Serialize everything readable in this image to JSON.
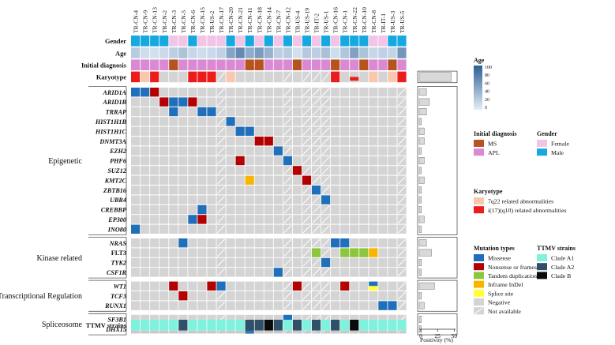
{
  "samples": [
    "TR-CN-4",
    "TR-CN-9",
    "TR-CN-13",
    "TR-CN-2",
    "TR-CN-3",
    "TR-CN-5",
    "TR-CN-6",
    "TR-CN-15",
    "TR-US-2",
    "TR-CN-17",
    "TR-CN-20",
    "TR-CN-21",
    "TR-CN-11",
    "TR-CN-18",
    "TR-CN-14",
    "TR-CN-7",
    "TR-CN-12",
    "TR-US-4",
    "TR-US-19",
    "TR-IT-2",
    "TR-US-1",
    "TR-CN-16",
    "TR-CN-1",
    "TR-CN-22",
    "TR-CN-10",
    "TR-CN-8",
    "TR-IT-1",
    "TR-US-3",
    "TR-US-5"
  ],
  "colors": {
    "missense": "#1f6fba",
    "nonsense": "#b30000",
    "tandem": "#8cc63f",
    "inframe": "#f7b500",
    "splice": "#ffff33",
    "negative": "#d4d4d4",
    "female": "#f2c4e6",
    "male": "#16a9e0",
    "ms": "#b5541f",
    "apl": "#d98ad3",
    "k7q22": "#f9c7ad",
    "ki17": "#ed1c1c",
    "cladeA1": "#7ff2de",
    "cladeA2": "#2e5068",
    "cladeB": "#0a0a0a",
    "bar": "#d9d9d9",
    "age_low": "#e4eef8",
    "age_high": "#2c5f94"
  },
  "annotation_labels": {
    "gender": "Gender",
    "age": "Age",
    "initial_diagnosis": "Initial diagnosis",
    "karyotype": "Karyotype",
    "ttmv": "TTMV strains"
  },
  "tracks": {
    "gender": [
      "M",
      "M",
      "M",
      "M",
      "F",
      "F",
      "M",
      "F",
      "F",
      "F",
      "M",
      "F",
      "M",
      "F",
      "M",
      "F",
      "M",
      "F",
      "M",
      "F",
      "M",
      "F",
      "M",
      "M",
      "M",
      "F",
      "F",
      "M",
      "M"
    ],
    "age": [
      24,
      12,
      10,
      14,
      22,
      30,
      16,
      12,
      14,
      20,
      52,
      70,
      46,
      58,
      42,
      22,
      24,
      10,
      26,
      22,
      32,
      12,
      28,
      54,
      30,
      16,
      20,
      18,
      62
    ],
    "diagnosis": [
      "APL",
      "APL",
      "APL",
      "APL",
      "MS",
      "APL",
      "APL",
      "APL",
      "APL",
      "APL",
      "APL",
      "APL",
      "MS",
      "MS",
      "APL",
      "APL",
      "APL",
      "MS",
      "APL",
      "APL",
      "APL",
      "MS",
      "APL",
      "APL",
      "MS",
      "APL",
      "APL",
      "MS",
      "APL"
    ],
    "karyotype": [
      "i17",
      "k7",
      "i17",
      "neg",
      "neg",
      "neg",
      "i17",
      "i17",
      "i17",
      "NA",
      "k7",
      "neg",
      "neg",
      "neg",
      "neg",
      "neg",
      "NA",
      "neg",
      "NA",
      "NA",
      "NA",
      "i17",
      "neg",
      "i17half",
      "neg",
      "k7",
      "neg",
      "k7",
      "i17"
    ],
    "ttmv": [
      "A1",
      "A1",
      "A1",
      "A1",
      "A1",
      "A2",
      "A1",
      "A1",
      "A1",
      "A1",
      "A1",
      "A1",
      "A2",
      "A2",
      "B",
      "A2",
      "A1",
      "A2",
      "A1",
      "A2",
      "A1",
      "A2",
      "A1",
      "B",
      "A1",
      "A1",
      "A1",
      "A1",
      "A1"
    ]
  },
  "na_columns": [
    9,
    16,
    18,
    19,
    20,
    28
  ],
  "groups": [
    {
      "name": "Epigenetic",
      "genes": [
        "ARID1A",
        "ARID1B",
        "TRRAP",
        "HIST1H1B",
        "HIST1H1C",
        "DNMT3A",
        "EZH2",
        "PHF6",
        "SUZ12",
        "KMT2C",
        "ZBTB16",
        "UBR4",
        "CREBBP",
        "EP300",
        "INO80"
      ]
    },
    {
      "name": "Kinase related",
      "genes": [
        "NRAS",
        "FLT3",
        "TYK2",
        "CSF1R"
      ]
    },
    {
      "name": "Transcriptional Regulation",
      "genes": [
        "WT1",
        "TCF3",
        "RUNX1"
      ]
    },
    {
      "name": "Spliceosome",
      "genes": [
        "SF3B1",
        "DHX15"
      ]
    }
  ],
  "italic_genes": [
    "ARID1A",
    "ARID1B",
    "TRRAP",
    "HIST1H1B",
    "HIST1H1C",
    "DNMT3A",
    "EZH2",
    "PHF6",
    "SUZ12",
    "KMT2C",
    "ZBTB16",
    "UBR4",
    "CREBBP",
    "EP300",
    "INO80",
    "NRAS",
    "TYK2",
    "CSF1R",
    "WT1",
    "TCF3",
    "RUNX1",
    "SF3B1",
    "DHX15"
  ],
  "mutations": [
    {
      "gene": "ARID1A",
      "col": 0,
      "type": "missense"
    },
    {
      "gene": "ARID1A",
      "col": 1,
      "type": "missense"
    },
    {
      "gene": "ARID1A",
      "col": 2,
      "type": "nonsense"
    },
    {
      "gene": "ARID1B",
      "col": 3,
      "type": "nonsense"
    },
    {
      "gene": "ARID1B",
      "col": 4,
      "type": "missense"
    },
    {
      "gene": "ARID1B",
      "col": 5,
      "type": "missense"
    },
    {
      "gene": "ARID1B",
      "col": 6,
      "type": "nonsense"
    },
    {
      "gene": "TRRAP",
      "col": 4,
      "type": "missense"
    },
    {
      "gene": "TRRAP",
      "col": 7,
      "type": "missense"
    },
    {
      "gene": "TRRAP",
      "col": 8,
      "type": "missense"
    },
    {
      "gene": "HIST1H1B",
      "col": 10,
      "type": "missense"
    },
    {
      "gene": "HIST1H1C",
      "col": 11,
      "type": "missense"
    },
    {
      "gene": "HIST1H1C",
      "col": 12,
      "type": "missense"
    },
    {
      "gene": "DNMT3A",
      "col": 13,
      "type": "nonsense"
    },
    {
      "gene": "DNMT3A",
      "col": 14,
      "type": "nonsense"
    },
    {
      "gene": "EZH2",
      "col": 15,
      "type": "missense"
    },
    {
      "gene": "PHF6",
      "col": 11,
      "type": "nonsense"
    },
    {
      "gene": "PHF6",
      "col": 16,
      "type": "missense"
    },
    {
      "gene": "SUZ12",
      "col": 17,
      "type": "nonsense"
    },
    {
      "gene": "KMT2C",
      "col": 12,
      "type": "inframe"
    },
    {
      "gene": "KMT2C",
      "col": 18,
      "type": "nonsense"
    },
    {
      "gene": "ZBTB16",
      "col": 19,
      "type": "missense"
    },
    {
      "gene": "UBR4",
      "col": 20,
      "type": "missense"
    },
    {
      "gene": "CREBBP",
      "col": 7,
      "type": "missense"
    },
    {
      "gene": "EP300",
      "col": 6,
      "type": "missense"
    },
    {
      "gene": "EP300",
      "col": 7,
      "type": "nonsense"
    },
    {
      "gene": "INO80",
      "col": 0,
      "type": "missense"
    },
    {
      "gene": "NRAS",
      "col": 5,
      "type": "missense"
    },
    {
      "gene": "NRAS",
      "col": 21,
      "type": "missense"
    },
    {
      "gene": "NRAS",
      "col": 22,
      "type": "missense"
    },
    {
      "gene": "FLT3",
      "col": 19,
      "type": "tandem"
    },
    {
      "gene": "FLT3",
      "col": 22,
      "type": "tandem"
    },
    {
      "gene": "FLT3",
      "col": 23,
      "type": "tandem"
    },
    {
      "gene": "FLT3",
      "col": 24,
      "type": "tandem"
    },
    {
      "gene": "FLT3",
      "col": 25,
      "type": "inframe"
    },
    {
      "gene": "TYK2",
      "col": 20,
      "type": "missense"
    },
    {
      "gene": "CSF1R",
      "col": 15,
      "type": "missense"
    },
    {
      "gene": "WT1",
      "col": 4,
      "type": "nonsense"
    },
    {
      "gene": "WT1",
      "col": 8,
      "type": "nonsense"
    },
    {
      "gene": "WT1",
      "col": 9,
      "type": "missense"
    },
    {
      "gene": "WT1",
      "col": 17,
      "type": "nonsense"
    },
    {
      "gene": "WT1",
      "col": 22,
      "type": "nonsense"
    },
    {
      "gene": "WT1",
      "col": 25,
      "type": "missense_splice"
    },
    {
      "gene": "TCF3",
      "col": 5,
      "type": "nonsense"
    },
    {
      "gene": "RUNX1",
      "col": 26,
      "type": "missense"
    },
    {
      "gene": "RUNX1",
      "col": 27,
      "type": "missense"
    },
    {
      "gene": "SF3B1",
      "col": 16,
      "type": "missense"
    },
    {
      "gene": "DHX15",
      "col": 12,
      "type": "missense"
    }
  ],
  "positivity": {
    "karyotype": 44,
    "ARID1A": 10,
    "ARID1B": 14,
    "TRRAP": 10,
    "HIST1H1B": 3,
    "HIST1H1C": 7,
    "DNMT3A": 7,
    "EZH2": 3,
    "PHF6": 7,
    "SUZ12": 3,
    "KMT2C": 7,
    "ZBTB16": 3,
    "UBR4": 3,
    "CREBBP": 3,
    "EP300": 7,
    "INO80": 3,
    "NRAS": 10,
    "FLT3": 17,
    "TYK2": 3,
    "CSF1R": 3,
    "WT1": 21,
    "TCF3": 3,
    "RUNX1": 7,
    "SF3B1": 3,
    "DHX15": 3
  },
  "axis": {
    "ticks": [
      0,
      25,
      50
    ],
    "title": "Positivity (%)"
  },
  "legend": {
    "age": {
      "title": "Age",
      "ticks": [
        100,
        80,
        60,
        40,
        20,
        0
      ]
    },
    "initial_diagnosis": {
      "title": "Initial diagnosis",
      "items": [
        {
          "label": "MS",
          "color": "ms"
        },
        {
          "label": "APL",
          "color": "apl"
        }
      ]
    },
    "gender": {
      "title": "Gender",
      "items": [
        {
          "label": "Female",
          "color": "female"
        },
        {
          "label": "Male",
          "color": "male"
        }
      ]
    },
    "karyotype": {
      "title": "Karyotype",
      "items": [
        {
          "label": "7q22 related abnormalities",
          "color": "k7q22"
        },
        {
          "label": "i(17)(q10) related abnormalities",
          "color": "ki17"
        }
      ]
    },
    "mutation_types": {
      "title": "Mutation types",
      "items": [
        {
          "label": "Missense",
          "color": "missense"
        },
        {
          "label": "Nonsense or frameshift",
          "color": "nonsense"
        },
        {
          "label": "Tandem duplication",
          "color": "tandem"
        },
        {
          "label": "Inframe InDel",
          "color": "inframe"
        },
        {
          "label": "Splice site",
          "color": "splice"
        },
        {
          "label": "Negative",
          "color": "negative"
        },
        {
          "label": "Not available",
          "color": "na"
        }
      ]
    },
    "ttmv": {
      "title": "TTMV strains",
      "items": [
        {
          "label": "Clade A1",
          "color": "cladeA1"
        },
        {
          "label": "Clade A2",
          "color": "cladeA2"
        },
        {
          "label": "Clade B",
          "color": "cladeB"
        }
      ]
    }
  }
}
